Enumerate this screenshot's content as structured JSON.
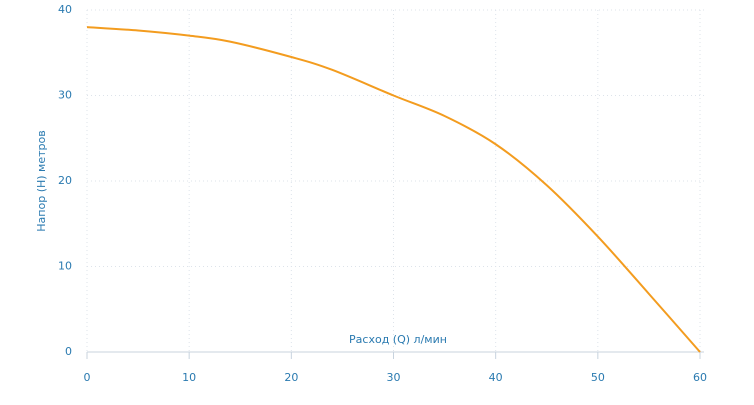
{
  "chart_data": {
    "type": "line",
    "x_label": "Расход (Q) л/мин",
    "y_label": "Напор (H) метров",
    "x": [
      0,
      5,
      10,
      14,
      20,
      24,
      30,
      35,
      40,
      45,
      50,
      55,
      60
    ],
    "series": [
      {
        "color": "#f39c1f",
        "values": [
          38,
          37.6,
          37,
          36.3,
          34.5,
          33,
          30,
          27.6,
          24.3,
          19.5,
          13.5,
          6.8,
          0
        ]
      }
    ],
    "xlim": [
      0,
      60
    ],
    "xticks": [
      0,
      10,
      20,
      30,
      40,
      50,
      60
    ],
    "ylim": [
      0,
      40
    ],
    "yticks": [
      0,
      10,
      20,
      30,
      40
    ],
    "grid": true
  }
}
